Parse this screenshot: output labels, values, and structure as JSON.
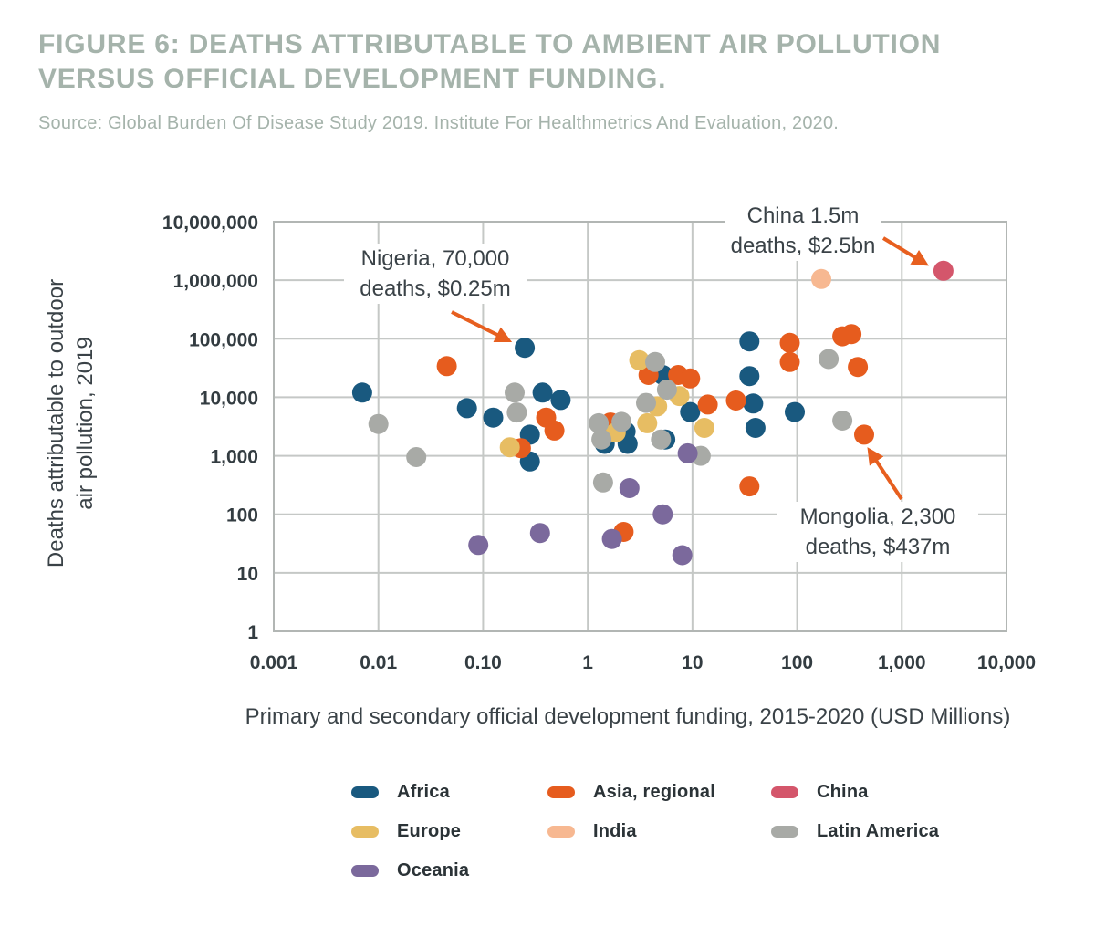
{
  "header": {
    "title_line1": "FIGURE 6: DEATHS ATTRIBUTABLE TO AMBIENT AIR POLLUTION",
    "title_line2": "VERSUS OFFICIAL DEVELOPMENT FUNDING.",
    "source": "Source: Global Burden Of Disease Study 2019. Institute For Healthmetrics And Evaluation, 2020."
  },
  "colors": {
    "title_gray_green": "#a5b3ab",
    "dark_text": "#3a4247",
    "grid_line": "#c5c8c6",
    "plot_border": "#b2b6b4",
    "arrow_orange": "#e75f1f"
  },
  "chart_data": {
    "type": "scatter",
    "x_scale": "log",
    "y_scale": "log",
    "xlim": [
      0.001,
      10000
    ],
    "ylim": [
      1,
      10000000
    ],
    "grid": "on",
    "legend_position": "bottom",
    "xlabel": "Primary and secondary official development funding, 2015-2020 (USD Millions)",
    "ylabel_lines": [
      "Deaths attributable to outdoor",
      "air pollution, 2019"
    ],
    "x_ticks": [
      {
        "v": 0.001,
        "label": "0.001"
      },
      {
        "v": 0.01,
        "label": "0.01"
      },
      {
        "v": 0.1,
        "label": "0.10"
      },
      {
        "v": 1,
        "label": "1"
      },
      {
        "v": 10,
        "label": "10"
      },
      {
        "v": 100,
        "label": "100"
      },
      {
        "v": 1000,
        "label": "1,000"
      },
      {
        "v": 10000,
        "label": "10,000"
      }
    ],
    "y_ticks": [
      {
        "v": 1,
        "label": "1"
      },
      {
        "v": 10,
        "label": "10"
      },
      {
        "v": 100,
        "label": "100"
      },
      {
        "v": 1000,
        "label": "1,000"
      },
      {
        "v": 10000,
        "label": "10,000"
      },
      {
        "v": 100000,
        "label": "100,000"
      },
      {
        "v": 1000000,
        "label": "1,000,000"
      },
      {
        "v": 10000000,
        "label": "10,000,000"
      }
    ],
    "series": [
      {
        "name": "Africa",
        "color": "#19597f",
        "points": [
          [
            0.007,
            12000
          ],
          [
            0.07,
            6500
          ],
          [
            0.125,
            4500
          ],
          [
            0.25,
            70000
          ],
          [
            0.28,
            2300
          ],
          [
            0.28,
            800
          ],
          [
            0.37,
            12000
          ],
          [
            0.55,
            9000
          ],
          [
            1.45,
            1600
          ],
          [
            2.3,
            2600
          ],
          [
            2.4,
            1600
          ],
          [
            5.2,
            24000
          ],
          [
            5.5,
            1900
          ],
          [
            9.5,
            5600
          ],
          [
            35,
            90000
          ],
          [
            35,
            23000
          ],
          [
            38,
            7800
          ],
          [
            40,
            3000
          ],
          [
            95,
            5600
          ]
        ]
      },
      {
        "name": "Asia, regional",
        "color": "#e65c1e",
        "points": [
          [
            0.045,
            34000
          ],
          [
            0.23,
            1350
          ],
          [
            0.4,
            4500
          ],
          [
            0.48,
            2700
          ],
          [
            1.65,
            3700
          ],
          [
            2.2,
            50
          ],
          [
            3.8,
            24000
          ],
          [
            7.3,
            24000
          ],
          [
            9.5,
            21000
          ],
          [
            14,
            7500
          ],
          [
            26,
            8800
          ],
          [
            35,
            300
          ],
          [
            85,
            85000
          ],
          [
            85,
            40000
          ],
          [
            270,
            110000
          ],
          [
            330,
            120000
          ],
          [
            380,
            33000
          ],
          [
            437,
            2300
          ]
        ]
      },
      {
        "name": "China",
        "color": "#d4566b",
        "points": [
          [
            2500,
            1450000
          ]
        ]
      },
      {
        "name": "Europe",
        "color": "#e7bd63",
        "points": [
          [
            0.18,
            1400
          ],
          [
            1.85,
            2500
          ],
          [
            3.1,
            43000
          ],
          [
            3.7,
            3600
          ],
          [
            4.6,
            7000
          ],
          [
            7.5,
            10500
          ],
          [
            13,
            3000
          ]
        ]
      },
      {
        "name": "India",
        "color": "#f7b891",
        "points": [
          [
            170,
            1050000
          ]
        ]
      },
      {
        "name": "Latin America",
        "color": "#a8aaa6",
        "points": [
          [
            0.01,
            3500
          ],
          [
            0.023,
            950
          ],
          [
            0.2,
            12000
          ],
          [
            0.21,
            5500
          ],
          [
            1.27,
            3600
          ],
          [
            1.35,
            1900
          ],
          [
            1.4,
            350
          ],
          [
            2.1,
            3800
          ],
          [
            3.6,
            8000
          ],
          [
            4.4,
            40000
          ],
          [
            5.7,
            13500
          ],
          [
            5,
            1900
          ],
          [
            12,
            1000
          ],
          [
            200,
            45000
          ],
          [
            270,
            4000
          ]
        ]
      },
      {
        "name": "Oceania",
        "color": "#7b699c",
        "points": [
          [
            0.09,
            30
          ],
          [
            0.35,
            48
          ],
          [
            1.7,
            38
          ],
          [
            2.5,
            280
          ],
          [
            5.2,
            100
          ],
          [
            8,
            20
          ],
          [
            9,
            1100
          ]
        ]
      }
    ],
    "annotations": [
      {
        "id": "nigeria",
        "lines": [
          "Nigeria, 70,000",
          "deaths, $0.25m"
        ],
        "points_to": {
          "series": "Africa",
          "x": 0.25,
          "y": 70000
        }
      },
      {
        "id": "china",
        "lines": [
          "China 1.5m",
          "deaths, $2.5bn"
        ],
        "points_to": {
          "series": "China",
          "x": 2500,
          "y": 1450000
        }
      },
      {
        "id": "mongolia",
        "lines": [
          "Mongolia, 2,300",
          "deaths, $437m"
        ],
        "points_to": {
          "series": "Asia, regional",
          "x": 437,
          "y": 2300
        }
      }
    ],
    "legend": [
      {
        "label": "Africa",
        "color": "#19597f"
      },
      {
        "label": "Asia, regional",
        "color": "#e65c1e"
      },
      {
        "label": "China",
        "color": "#d4566b"
      },
      {
        "label": "Europe",
        "color": "#e7bd63"
      },
      {
        "label": "India",
        "color": "#f7b891"
      },
      {
        "label": "Latin America",
        "color": "#a8aaa6"
      },
      {
        "label": "Oceania",
        "color": "#7b699c"
      }
    ]
  }
}
